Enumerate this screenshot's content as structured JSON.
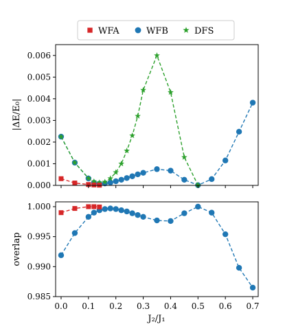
{
  "chart_data": [
    {
      "type": "line",
      "panel": "top",
      "ylabel": "|ΔE/E₀|",
      "xlabel": "",
      "xlim": [
        -0.02,
        0.72
      ],
      "ylim": [
        0,
        0.0065
      ],
      "xticks": [
        "0.0",
        "0.1",
        "0.2",
        "0.3",
        "0.4",
        "0.5",
        "0.6",
        "0.7"
      ],
      "xtick_values": [
        0,
        0.1,
        0.2,
        0.3,
        0.4,
        0.5,
        0.6,
        0.7
      ],
      "yticks": [
        "0.000",
        "0.001",
        "0.002",
        "0.003",
        "0.004",
        "0.005",
        "0.006"
      ],
      "ytick_values": [
        0,
        0.001,
        0.002,
        0.003,
        0.004,
        0.005,
        0.006
      ],
      "grid": false,
      "legend": "top-center",
      "series": [
        {
          "name": "WFA",
          "color": "#d62728",
          "marker": "square",
          "x": [
            0.0,
            0.05,
            0.1,
            0.12,
            0.14
          ],
          "y": [
            0.00031,
            0.00011,
            4e-05,
            2e-05,
            1e-05
          ]
        },
        {
          "name": "WFB",
          "color": "#1f77b4",
          "marker": "circle",
          "x": [
            0.0,
            0.05,
            0.1,
            0.12,
            0.14,
            0.16,
            0.18,
            0.2,
            0.22,
            0.24,
            0.26,
            0.28,
            0.3,
            0.35,
            0.4,
            0.45,
            0.5,
            0.55,
            0.6,
            0.65,
            0.7
          ],
          "y": [
            0.00225,
            0.00105,
            0.00032,
            0.00012,
            8e-05,
            9e-05,
            0.00013,
            0.00019,
            0.00026,
            0.00034,
            0.00042,
            0.00051,
            0.00058,
            0.00075,
            0.00068,
            0.00026,
            1e-05,
            0.00029,
            0.00115,
            0.00248,
            0.00382
          ]
        },
        {
          "name": "DFS",
          "color": "#2ca02c",
          "marker": "star",
          "x": [
            0.0,
            0.05,
            0.1,
            0.12,
            0.14,
            0.16,
            0.18,
            0.2,
            0.22,
            0.24,
            0.26,
            0.28,
            0.3,
            0.35,
            0.4,
            0.45,
            0.5
          ],
          "y": [
            0.00225,
            0.00105,
            0.00033,
            0.00018,
            0.00013,
            0.00016,
            0.00032,
            0.0006,
            0.001,
            0.0016,
            0.0023,
            0.0032,
            0.0044,
            0.006,
            0.0043,
            0.0013,
            1e-05
          ]
        }
      ]
    },
    {
      "type": "line",
      "panel": "bottom",
      "ylabel": "overlap",
      "xlabel": "J₂/J₁",
      "xlim": [
        -0.02,
        0.72
      ],
      "ylim": [
        0.985,
        1.0008
      ],
      "xticks": [
        "0.0",
        "0.1",
        "0.2",
        "0.3",
        "0.4",
        "0.5",
        "0.6",
        "0.7"
      ],
      "xtick_values": [
        0,
        0.1,
        0.2,
        0.3,
        0.4,
        0.5,
        0.6,
        0.7
      ],
      "yticks": [
        "0.985",
        "0.990",
        "0.995",
        "1.000"
      ],
      "ytick_values": [
        0.985,
        0.99,
        0.995,
        1.0
      ],
      "grid": false,
      "series": [
        {
          "name": "WFA",
          "color": "#d62728",
          "marker": "square",
          "x": [
            0.0,
            0.05,
            0.1,
            0.12,
            0.14
          ],
          "y": [
            0.999,
            0.9997,
            1.0,
            1.0,
            0.99995
          ]
        },
        {
          "name": "WFB",
          "color": "#1f77b4",
          "marker": "circle",
          "x": [
            0.0,
            0.05,
            0.1,
            0.12,
            0.14,
            0.16,
            0.18,
            0.2,
            0.22,
            0.24,
            0.26,
            0.28,
            0.3,
            0.35,
            0.4,
            0.45,
            0.5,
            0.55,
            0.6,
            0.65,
            0.7
          ],
          "y": [
            0.9919,
            0.9956,
            0.9983,
            0.999,
            0.9994,
            0.9996,
            0.9997,
            0.9996,
            0.9994,
            0.9992,
            0.9989,
            0.9986,
            0.9983,
            0.9977,
            0.9976,
            0.9989,
            1.0,
            0.999,
            0.9954,
            0.9898,
            0.9865
          ]
        }
      ]
    }
  ]
}
